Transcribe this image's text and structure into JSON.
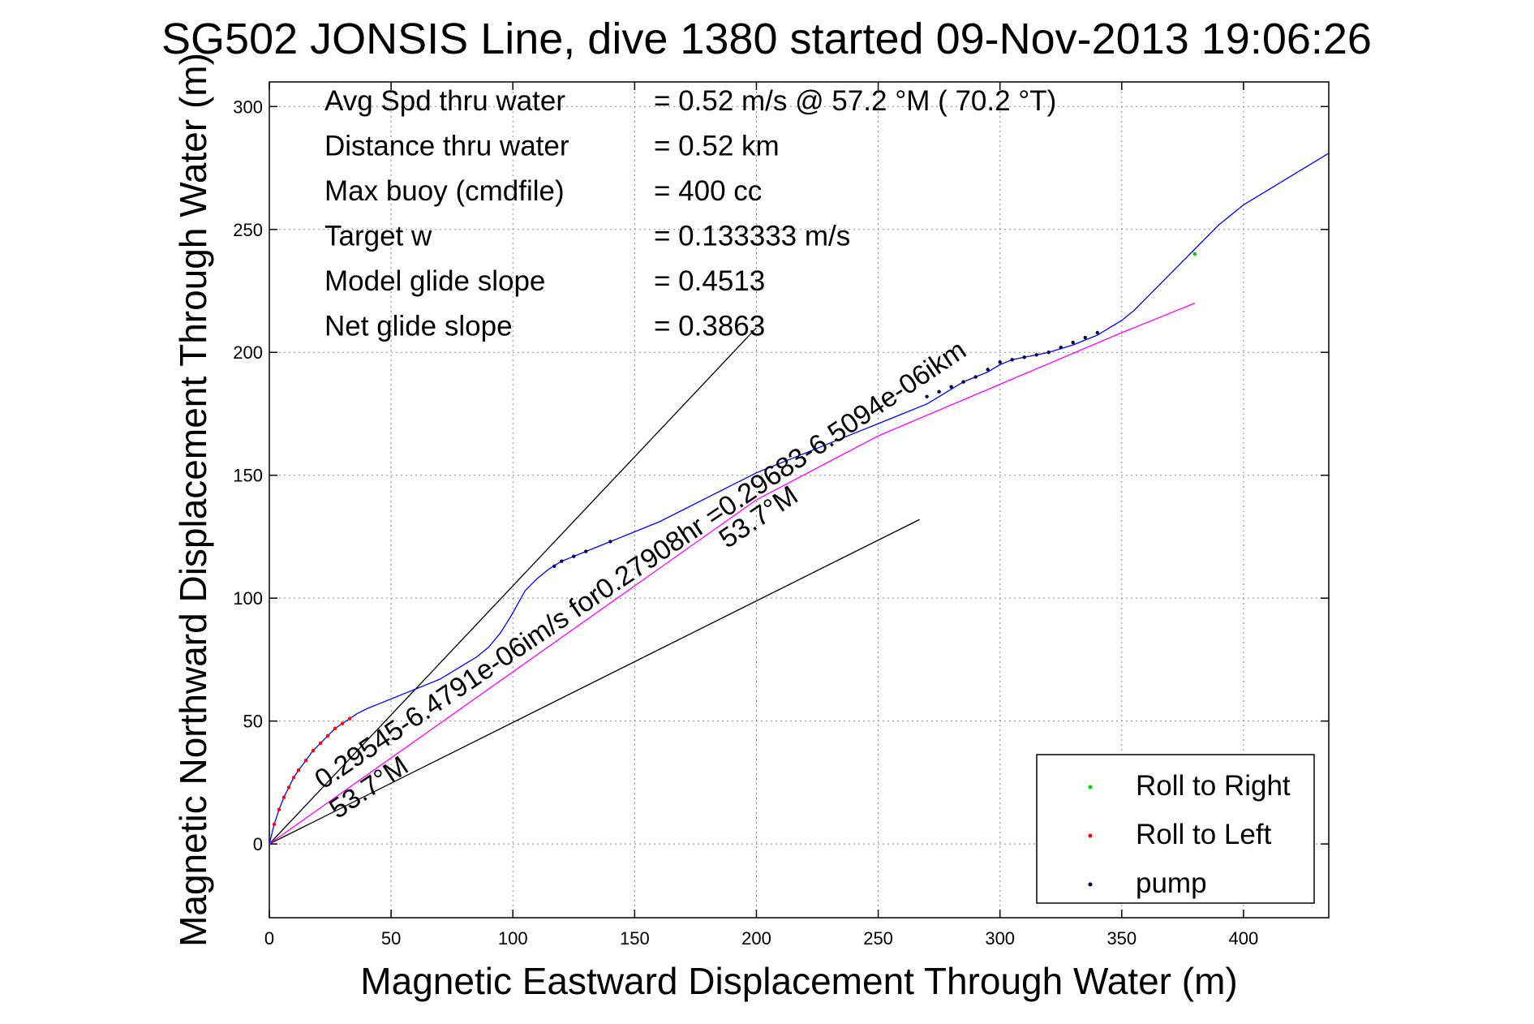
{
  "chart_data": {
    "type": "line",
    "title": "SG502 JONSIS Line, dive 1380 started 09-Nov-2013 19:06:26",
    "xlabel": "Magnetic Eastward Displacement Through Water (m)",
    "ylabel": "Magnetic Northward Displacement Through Water (m)",
    "xlim": [
      0,
      435
    ],
    "ylim": [
      -30,
      310
    ],
    "xticks": [
      0,
      50,
      100,
      150,
      200,
      250,
      300,
      350,
      400
    ],
    "yticks": [
      0,
      50,
      100,
      150,
      200,
      250,
      300
    ],
    "grid": true,
    "legend_position": "bottom-right",
    "stats": [
      {
        "label": "Avg Spd thru water",
        "value": "=  0.52 m/s @  57.2 °M ( 70.2 °T)"
      },
      {
        "label": "Distance thru water",
        "value": "=  0.52 km"
      },
      {
        "label": "Max buoy (cmdfile)",
        "value": "= 400 cc"
      },
      {
        "label": "Target w",
        "value": "= 0.133333 m/s"
      },
      {
        "label": "Model glide slope",
        "value": "= 0.4513"
      },
      {
        "label": "Net glide slope",
        "value": "= 0.3863"
      }
    ],
    "series": [
      {
        "name": "track",
        "color": "#0000ff",
        "x": [
          0,
          2,
          4,
          6,
          8,
          10,
          12,
          15,
          18,
          21,
          24,
          27,
          30,
          33,
          36,
          40,
          45,
          50,
          55,
          60,
          65,
          70,
          75,
          80,
          85,
          90,
          95,
          100,
          105,
          110,
          115,
          120,
          125,
          130,
          140,
          150,
          160,
          170,
          180,
          190,
          200,
          210,
          220,
          230,
          240,
          250,
          260,
          270,
          275,
          280,
          285,
          290,
          295,
          300,
          305,
          310,
          320,
          330,
          340,
          345,
          350,
          355,
          360,
          370,
          380,
          390,
          400,
          410,
          420,
          430,
          435
        ],
        "y": [
          0,
          8,
          14,
          19,
          23,
          27,
          30,
          34,
          38,
          41,
          44,
          47,
          49,
          51,
          53,
          55,
          57,
          59,
          61,
          63,
          65,
          67,
          70,
          73,
          76,
          80,
          86,
          94,
          103,
          108,
          112,
          115,
          117,
          119,
          123,
          127,
          131,
          136,
          141,
          146,
          151,
          155,
          159,
          163,
          167,
          171,
          175,
          179,
          182,
          185,
          188,
          190,
          192,
          195,
          197,
          198,
          200,
          203,
          207,
          210,
          213,
          217,
          222,
          232,
          242,
          252,
          260,
          266,
          272,
          278,
          281
        ]
      },
      {
        "name": "current",
        "color": "#ff00ff",
        "x": [
          0,
          50,
          100,
          150,
          200,
          250,
          300,
          350,
          380
        ],
        "y": [
          0,
          35,
          70,
          105,
          140,
          166,
          187,
          208,
          220
        ]
      }
    ],
    "markers": {
      "Roll to Right": {
        "color": "#00cc00",
        "points": [
          [
            380,
            240
          ]
        ]
      },
      "Roll to Left": {
        "color": "#ff0000",
        "points": [
          [
            2,
            8
          ],
          [
            4,
            14
          ],
          [
            6,
            19
          ],
          [
            8,
            23
          ],
          [
            10,
            27
          ],
          [
            12,
            30
          ],
          [
            15,
            34
          ],
          [
            18,
            38
          ],
          [
            21,
            41
          ],
          [
            24,
            44
          ],
          [
            27,
            47
          ],
          [
            30,
            49
          ],
          [
            33,
            51
          ]
        ]
      },
      "pump": {
        "color": "#000040",
        "points": [
          [
            117,
            113
          ],
          [
            120,
            115
          ],
          [
            125,
            117
          ],
          [
            130,
            119
          ],
          [
            140,
            123
          ],
          [
            270,
            182
          ],
          [
            275,
            184
          ],
          [
            280,
            186
          ],
          [
            285,
            188
          ],
          [
            290,
            190
          ],
          [
            295,
            193
          ],
          [
            300,
            196
          ],
          [
            305,
            197
          ],
          [
            310,
            198
          ],
          [
            315,
            199
          ],
          [
            320,
            200
          ],
          [
            325,
            202
          ],
          [
            330,
            204
          ],
          [
            335,
            206
          ],
          [
            340,
            208
          ]
        ]
      }
    },
    "reference_lines": [
      {
        "name": "model glide line",
        "x": [
          0,
          200
        ],
        "y": [
          0,
          210
        ]
      },
      {
        "name": "net heading line",
        "x": [
          0,
          267
        ],
        "y": [
          0,
          132
        ]
      }
    ],
    "annotations": [
      {
        "text": "0.29545-6.4791e-06im/s for0.27908hr =0.29683-6.5094e-06ikm",
        "x": 22,
        "y": 22,
        "angle_deg": 34
      },
      {
        "text": "53.7°M",
        "x": 28,
        "y": 10,
        "angle_deg": 34
      },
      {
        "text": "53.7°M",
        "x": 188,
        "y": 120,
        "angle_deg": 34
      }
    ],
    "legend": [
      {
        "label": "Roll to Right",
        "color": "#00cc00"
      },
      {
        "label": "Roll to Left",
        "color": "#ff0000"
      },
      {
        "label": "pump",
        "color": "#000040"
      }
    ]
  }
}
